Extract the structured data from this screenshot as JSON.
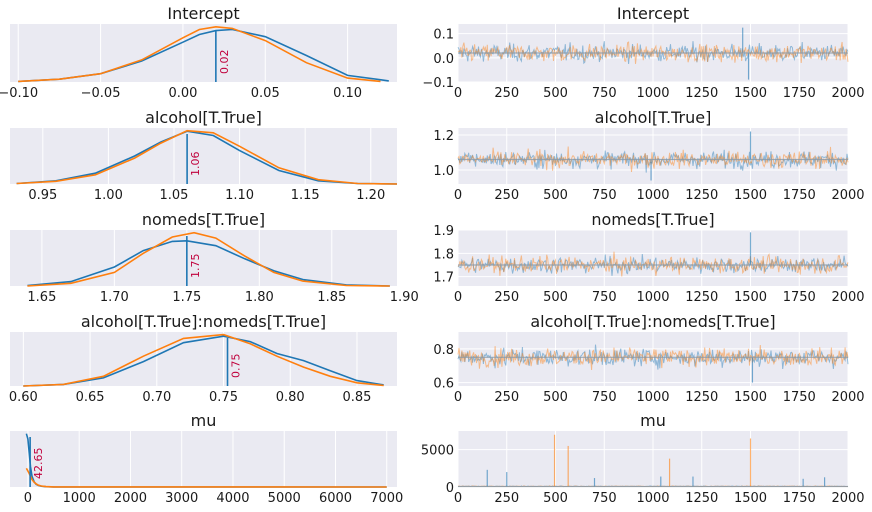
{
  "figure": {
    "background": "#ffffff",
    "panel_bg": "#eaeaf2"
  },
  "colors": {
    "chain_1": "#1f77b4",
    "chain_2": "#ff7f0e",
    "annotation": "#c0003c"
  },
  "chart_data": [
    {
      "type": "line",
      "title": "Intercept",
      "xlim": [
        -0.105,
        0.13
      ],
      "xticks": [
        -0.1,
        -0.05,
        0.0,
        0.05,
        0.1
      ],
      "xtick_labels": [
        "−0.10",
        "−0.05",
        "0.00",
        "0.05",
        "0.10"
      ],
      "series": [
        {
          "x": [
            -0.1,
            -0.075,
            -0.05,
            -0.025,
            0,
            0.01,
            0.02,
            0.03,
            0.05,
            0.075,
            0.1,
            0.125
          ],
          "y": [
            0.01,
            0.05,
            0.15,
            0.38,
            0.72,
            0.86,
            0.93,
            0.95,
            0.82,
            0.48,
            0.12,
            0.02
          ]
        },
        {
          "x": [
            -0.1,
            -0.075,
            -0.05,
            -0.025,
            0,
            0.01,
            0.02,
            0.03,
            0.05,
            0.075,
            0.1,
            0.12
          ],
          "y": [
            0.01,
            0.05,
            0.15,
            0.4,
            0.8,
            0.95,
            1.0,
            0.97,
            0.75,
            0.35,
            0.07,
            0.01
          ]
        }
      ],
      "reference_value": 0.02,
      "annotation": "0.02"
    },
    {
      "type": "line",
      "title": "Intercept",
      "xlim": [
        0,
        2000
      ],
      "ylim": [
        -0.1,
        0.14
      ],
      "xticks": [
        0,
        250,
        500,
        750,
        1000,
        1250,
        1500,
        1750,
        2000
      ],
      "yticks": [
        -0.1,
        0.0,
        0.1
      ],
      "ytick_labels": [
        "−0.1",
        "0.0",
        "0.1"
      ],
      "trace_center": 0.02,
      "trace_spread": 0.03,
      "spikes": [
        {
          "x": 1460,
          "y": 0.125
        },
        {
          "x": 1490,
          "y": -0.09
        }
      ]
    },
    {
      "type": "line",
      "title": "alcohol[T.True]",
      "xlim": [
        0.925,
        1.22
      ],
      "xticks": [
        0.95,
        1.0,
        1.05,
        1.1,
        1.15,
        1.2
      ],
      "xtick_labels": [
        "0.95",
        "1.00",
        "1.05",
        "1.10",
        "1.15",
        "1.20"
      ],
      "series": [
        {
          "x": [
            0.93,
            0.96,
            0.99,
            1.02,
            1.04,
            1.06,
            1.08,
            1.1,
            1.13,
            1.16,
            1.19,
            1.22
          ],
          "y": [
            0.01,
            0.06,
            0.2,
            0.52,
            0.78,
            0.98,
            0.9,
            0.62,
            0.25,
            0.06,
            0.01,
            0.0
          ]
        },
        {
          "x": [
            0.93,
            0.96,
            0.99,
            1.02,
            1.04,
            1.06,
            1.08,
            1.1,
            1.13,
            1.16,
            1.19,
            1.22
          ],
          "y": [
            0.01,
            0.05,
            0.17,
            0.48,
            0.76,
            0.99,
            0.95,
            0.7,
            0.3,
            0.08,
            0.01,
            0.0
          ]
        }
      ],
      "reference_value": 1.06,
      "annotation": "1.06"
    },
    {
      "type": "line",
      "title": "alcohol[T.True]",
      "xlim": [
        0,
        2000
      ],
      "ylim": [
        0.92,
        1.24
      ],
      "xticks": [
        0,
        250,
        500,
        750,
        1000,
        1250,
        1500,
        1750,
        2000
      ],
      "yticks": [
        1.0,
        1.2
      ],
      "ytick_labels": [
        "1.0",
        "1.2"
      ],
      "trace_center": 1.06,
      "trace_spread": 0.04,
      "spikes": [
        {
          "x": 1500,
          "y": 1.22
        },
        {
          "x": 990,
          "y": 0.94
        }
      ]
    },
    {
      "type": "line",
      "title": "nomeds[T.True]",
      "xlim": [
        1.628,
        1.895
      ],
      "xticks": [
        1.65,
        1.7,
        1.75,
        1.8,
        1.85,
        1.9
      ],
      "xtick_labels": [
        "1.65",
        "1.70",
        "1.75",
        "1.80",
        "1.85",
        "1.90"
      ],
      "series": [
        {
          "x": [
            1.64,
            1.67,
            1.7,
            1.72,
            1.74,
            1.75,
            1.77,
            1.79,
            1.81,
            1.83,
            1.86,
            1.89
          ],
          "y": [
            0.01,
            0.08,
            0.35,
            0.65,
            0.82,
            0.83,
            0.74,
            0.5,
            0.28,
            0.12,
            0.02,
            0.0
          ]
        },
        {
          "x": [
            1.64,
            1.67,
            1.7,
            1.72,
            1.74,
            1.755,
            1.77,
            1.79,
            1.81,
            1.83,
            1.86,
            1.89
          ],
          "y": [
            0.0,
            0.05,
            0.25,
            0.6,
            0.9,
            0.98,
            0.88,
            0.55,
            0.25,
            0.09,
            0.01,
            0.0
          ]
        }
      ],
      "reference_value": 1.75,
      "annotation": "1.75"
    },
    {
      "type": "line",
      "title": "nomeds[T.True]",
      "xlim": [
        0,
        2000
      ],
      "ylim": [
        1.66,
        1.9
      ],
      "xticks": [
        0,
        250,
        500,
        750,
        1000,
        1250,
        1500,
        1750,
        2000
      ],
      "yticks": [
        1.7,
        1.8,
        1.9
      ],
      "ytick_labels": [
        "1.7",
        "1.8",
        "1.9"
      ],
      "trace_center": 1.75,
      "trace_spread": 0.03,
      "spikes": [
        {
          "x": 1500,
          "y": 1.89
        }
      ]
    },
    {
      "type": "line",
      "title": "alcohol[T.True]:nomeds[T.True]",
      "xlim": [
        0.59,
        0.88
      ],
      "xticks": [
        0.6,
        0.65,
        0.7,
        0.75,
        0.8,
        0.85
      ],
      "xtick_labels": [
        "0.60",
        "0.65",
        "0.70",
        "0.75",
        "0.80",
        "0.85"
      ],
      "series": [
        {
          "x": [
            0.6,
            0.63,
            0.66,
            0.69,
            0.72,
            0.75,
            0.77,
            0.79,
            0.81,
            0.83,
            0.85,
            0.87
          ],
          "y": [
            0.0,
            0.03,
            0.15,
            0.45,
            0.8,
            0.92,
            0.82,
            0.6,
            0.47,
            0.28,
            0.1,
            0.02
          ]
        },
        {
          "x": [
            0.6,
            0.63,
            0.66,
            0.69,
            0.72,
            0.75,
            0.77,
            0.79,
            0.81,
            0.83,
            0.85,
            0.87
          ],
          "y": [
            0.0,
            0.03,
            0.18,
            0.55,
            0.88,
            0.95,
            0.78,
            0.55,
            0.35,
            0.18,
            0.06,
            0.01
          ]
        }
      ],
      "reference_value": 0.753,
      "annotation": "0.75"
    },
    {
      "type": "line",
      "title": "alcohol[T.True]:nomeds[T.True]",
      "xlim": [
        0,
        2000
      ],
      "ylim": [
        0.58,
        0.9
      ],
      "xticks": [
        0,
        250,
        500,
        750,
        1000,
        1250,
        1500,
        1750,
        2000
      ],
      "yticks": [
        0.6,
        0.8
      ],
      "ytick_labels": [
        "0.6",
        "0.8"
      ],
      "trace_center": 0.75,
      "trace_spread": 0.045,
      "spikes": [
        {
          "x": 1510,
          "y": 0.6
        }
      ]
    },
    {
      "type": "line",
      "title": "mu",
      "xlim": [
        -350,
        7200
      ],
      "xticks": [
        0,
        1000,
        2000,
        3000,
        4000,
        5000,
        6000,
        7000
      ],
      "series": [
        {
          "x": [
            -30,
            0,
            20,
            50,
            80,
            120,
            160,
            200,
            260,
            350,
            500,
            7000
          ],
          "y": [
            1.0,
            0.9,
            0.68,
            0.38,
            0.2,
            0.1,
            0.05,
            0.03,
            0.015,
            0.006,
            0.0,
            0.0
          ]
        },
        {
          "x": [
            -30,
            0,
            20,
            50,
            80,
            120,
            160,
            200,
            260,
            350,
            500,
            7000
          ],
          "y": [
            0.35,
            0.3,
            0.26,
            0.2,
            0.14,
            0.09,
            0.06,
            0.035,
            0.018,
            0.008,
            0.002,
            0.0
          ]
        }
      ],
      "reference_value": 42.65,
      "annotation": "42.65"
    },
    {
      "type": "line",
      "title": "mu",
      "xlim": [
        0,
        2000
      ],
      "ylim": [
        0,
        7500
      ],
      "xticks": [
        0,
        250,
        500,
        750,
        1000,
        1250,
        1500,
        1750,
        2000
      ],
      "yticks": [
        0,
        5000
      ],
      "trace_center": 60,
      "trace_spread": 60,
      "spikes": [
        {
          "x": 150,
          "y": 2300,
          "chain": 0
        },
        {
          "x": 250,
          "y": 2000,
          "chain": 0
        },
        {
          "x": 495,
          "y": 7000,
          "chain": 1
        },
        {
          "x": 565,
          "y": 5500,
          "chain": 1
        },
        {
          "x": 700,
          "y": 1200,
          "chain": 0
        },
        {
          "x": 1040,
          "y": 1400,
          "chain": 0
        },
        {
          "x": 1085,
          "y": 3800,
          "chain": 1
        },
        {
          "x": 1205,
          "y": 1400,
          "chain": 0
        },
        {
          "x": 1500,
          "y": 6500,
          "chain": 1
        },
        {
          "x": 1770,
          "y": 1100,
          "chain": 0
        },
        {
          "x": 1880,
          "y": 1300,
          "chain": 0
        }
      ]
    }
  ]
}
